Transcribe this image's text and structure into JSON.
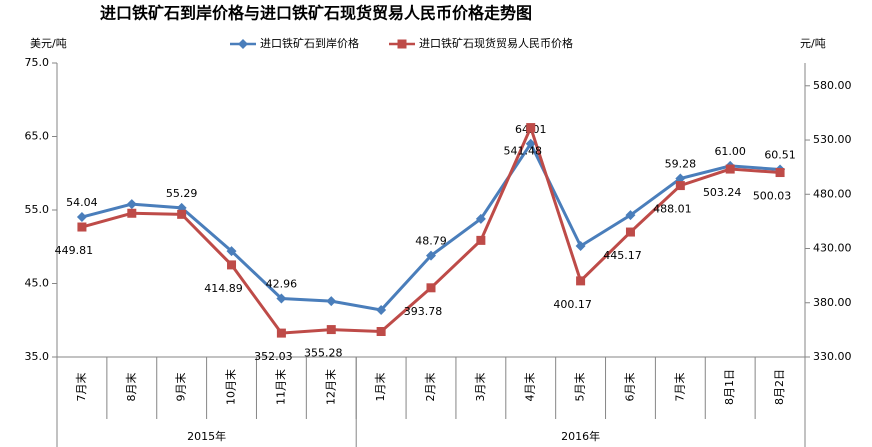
{
  "chart_data": {
    "type": "line",
    "title": "进口铁矿石到岸价格与进口铁矿石现货贸易人民币价格走势图",
    "y_label": "美元/吨",
    "y2_label": "元/吨",
    "categories": [
      "7月末",
      "8月末",
      "9月末",
      "10月末",
      "11月末",
      "12月末",
      "1月末",
      "2月末",
      "3月末",
      "4月末",
      "5月末",
      "6月末",
      "7月末",
      "8月1日",
      "8月2日"
    ],
    "groups": [
      {
        "name": "2015年",
        "span": 6
      },
      {
        "name": "2016年",
        "span": 9
      }
    ],
    "series": [
      {
        "name": "进口铁矿石到岸价格",
        "color": "#4a7ebb",
        "marker": "diamond",
        "values": [
          54.04,
          55.8,
          55.29,
          49.4,
          42.96,
          42.6,
          41.4,
          48.79,
          53.8,
          64.01,
          50.1,
          54.3,
          59.28,
          61.0,
          60.51
        ],
        "value_labels": [
          "54.04",
          null,
          "55.29",
          null,
          "42.96",
          null,
          null,
          "48.79",
          null,
          "64.01",
          null,
          null,
          "59.28",
          "61.00",
          "60.51"
        ]
      },
      {
        "name": "进口铁矿石现货贸易人民币价格",
        "color": "#be4b48",
        "marker": "square",
        "axis": "y2",
        "values": [
          449.81,
          462.5,
          461.5,
          414.89,
          352.03,
          355.28,
          353.5,
          393.78,
          437.5,
          541.48,
          400.17,
          445.17,
          488.01,
          503.24,
          500.03
        ],
        "value_labels": [
          "449.81",
          null,
          null,
          "414.89",
          "352.03",
          "355.28",
          null,
          "393.78",
          null,
          "541.48",
          "400.17",
          "445.17",
          "488.01",
          "503.24",
          "500.03"
        ]
      }
    ],
    "ylim": [
      35,
      75
    ],
    "yticks": [
      {
        "value": 35,
        "label": "35.0"
      },
      {
        "value": 45,
        "label": "45.0"
      },
      {
        "value": 55,
        "label": "55.0"
      },
      {
        "value": 65,
        "label": "65.0"
      },
      {
        "value": 75,
        "label": "75.0"
      }
    ],
    "y2lim": [
      330,
      601
    ],
    "y2ticks": [
      {
        "value": 330,
        "label": "330.00"
      },
      {
        "value": 380,
        "label": "380.00"
      },
      {
        "value": 430,
        "label": "430.00"
      },
      {
        "value": 480,
        "label": "480.00"
      },
      {
        "value": 530,
        "label": "530.00"
      },
      {
        "value": 580,
        "label": "580.00"
      }
    ],
    "grid": false,
    "legend": "top"
  }
}
